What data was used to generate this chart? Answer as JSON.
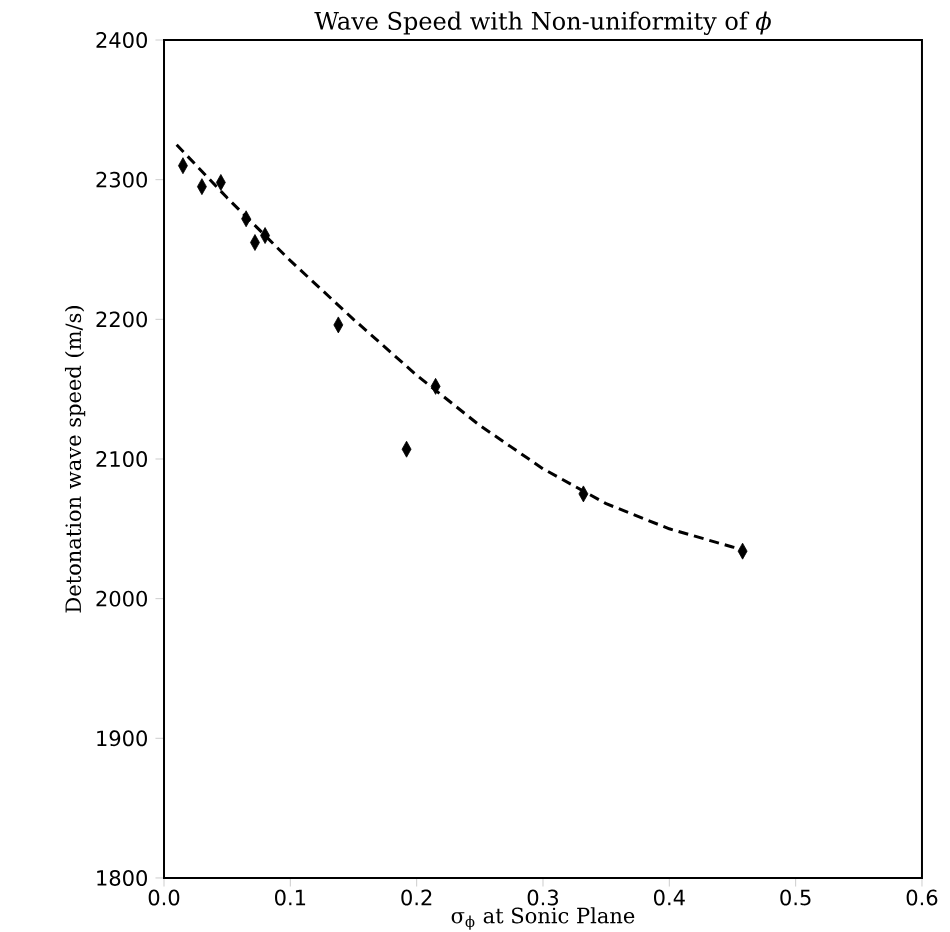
{
  "chart_data": {
    "type": "scatter",
    "title": "Wave Speed with Non-uniformity of *ϕ*",
    "xlabel": "σ$_{ϕ}$ at Sonic Plane",
    "ylabel": "Detonation wave speed (m/s)",
    "xlim": [
      0.0,
      0.6
    ],
    "ylim": [
      1800,
      2400
    ],
    "xticks": [
      {
        "value": 0.0,
        "label": "0.0"
      },
      0.1,
      0.2,
      0.3,
      0.4,
      0.5,
      0.6
    ],
    "yticks": [
      1800,
      1900,
      2000,
      2100,
      2200,
      2300,
      2400
    ],
    "grid": false,
    "series": [
      {
        "type": "scatter",
        "marker": "diamond",
        "color": "#000000",
        "x": [
          0.015,
          0.03,
          0.045,
          0.065,
          0.072,
          0.08,
          0.138,
          0.192,
          0.215,
          0.332,
          0.458
        ],
        "values": [
          2310,
          2295,
          2298,
          2272,
          2255,
          2260,
          2196,
          2107,
          2152,
          2075,
          2034
        ]
      },
      {
        "type": "line",
        "marker": "none",
        "line_style": "dashed",
        "color": "#000000",
        "x": [
          0.01,
          0.05,
          0.1,
          0.15,
          0.2,
          0.25,
          0.3,
          0.35,
          0.4,
          0.45,
          0.46
        ],
        "values": [
          2325,
          2287,
          2242,
          2200,
          2160,
          2124,
          2093,
          2068,
          2050,
          2037,
          2035
        ]
      }
    ]
  }
}
